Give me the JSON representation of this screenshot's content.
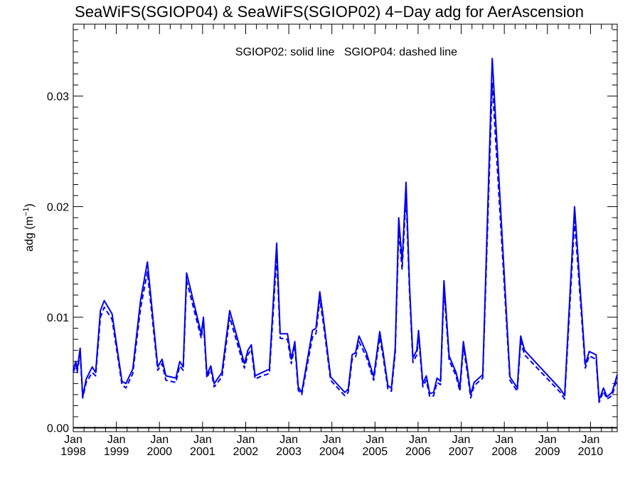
{
  "chart_data": {
    "type": "line",
    "title": "SeaWiFS(SGIOP04) & SeaWiFS(SGIOP02) 4−Day adg for AerAscension",
    "annotation": "SGIOP02: solid line   SGIOP04: dashed line",
    "ylabel": "adg (m",
    "ylabel_sup": "−1",
    "ylabel_close": ")",
    "xlim": [
      1998.0,
      2010.62
    ],
    "ylim": [
      -0.00035,
      0.0365
    ],
    "yticks": [
      {
        "value": 0.0,
        "label": "0.00"
      },
      {
        "value": 0.01,
        "label": "0.01"
      },
      {
        "value": 0.02,
        "label": "0.02"
      },
      {
        "value": 0.03,
        "label": "0.03"
      }
    ],
    "xticks": [
      {
        "value": 1998,
        "month": "Jan",
        "year": "1998"
      },
      {
        "value": 1999,
        "month": "Jan",
        "year": "1999"
      },
      {
        "value": 2000,
        "month": "Jan",
        "year": "2000"
      },
      {
        "value": 2001,
        "month": "Jan",
        "year": "2001"
      },
      {
        "value": 2002,
        "month": "Jan",
        "year": "2002"
      },
      {
        "value": 2003,
        "month": "Jan",
        "year": "2003"
      },
      {
        "value": 2004,
        "month": "Jan",
        "year": "2004"
      },
      {
        "value": 2005,
        "month": "Jan",
        "year": "2005"
      },
      {
        "value": 2006,
        "month": "Jan",
        "year": "2006"
      },
      {
        "value": 2007,
        "month": "Jan",
        "year": "2007"
      },
      {
        "value": 2008,
        "month": "Jan",
        "year": "2008"
      },
      {
        "value": 2009,
        "month": "Jan",
        "year": "2009"
      },
      {
        "value": 2010,
        "month": "Jan",
        "year": "2010"
      }
    ],
    "colors": {
      "series": "#0000ee",
      "axes": "#000000",
      "zero_line": "#000000"
    },
    "series": [
      {
        "style": "solid",
        "points": [
          [
            1998.0,
            0.0052
          ],
          [
            1998.06,
            0.006
          ],
          [
            1998.09,
            0.0052
          ],
          [
            1998.16,
            0.0072
          ],
          [
            1998.22,
            0.0028
          ],
          [
            1998.3,
            0.0044
          ],
          [
            1998.44,
            0.0055
          ],
          [
            1998.52,
            0.005
          ],
          [
            1998.63,
            0.0106
          ],
          [
            1998.72,
            0.0115
          ],
          [
            1998.9,
            0.0103
          ],
          [
            1999.13,
            0.0042
          ],
          [
            1999.22,
            0.004
          ],
          [
            1999.38,
            0.0053
          ],
          [
            1999.56,
            0.0115
          ],
          [
            1999.72,
            0.015
          ],
          [
            1999.96,
            0.0055
          ],
          [
            2000.06,
            0.0062
          ],
          [
            2000.15,
            0.0047
          ],
          [
            2000.38,
            0.0045
          ],
          [
            2000.47,
            0.006
          ],
          [
            2000.55,
            0.0055
          ],
          [
            2000.63,
            0.014
          ],
          [
            2000.97,
            0.0085
          ],
          [
            2001.02,
            0.01
          ],
          [
            2001.1,
            0.0048
          ],
          [
            2001.19,
            0.0056
          ],
          [
            2001.27,
            0.004
          ],
          [
            2001.45,
            0.005
          ],
          [
            2001.63,
            0.0106
          ],
          [
            2001.97,
            0.0058
          ],
          [
            2002.05,
            0.007
          ],
          [
            2002.13,
            0.0075
          ],
          [
            2002.22,
            0.0047
          ],
          [
            2002.38,
            0.005
          ],
          [
            2002.55,
            0.0053
          ],
          [
            2002.72,
            0.0167
          ],
          [
            2002.8,
            0.0085
          ],
          [
            2002.97,
            0.0085
          ],
          [
            2003.06,
            0.0062
          ],
          [
            2003.14,
            0.0078
          ],
          [
            2003.22,
            0.0037
          ],
          [
            2003.3,
            0.0032
          ],
          [
            2003.55,
            0.0088
          ],
          [
            2003.63,
            0.009
          ],
          [
            2003.72,
            0.0123
          ],
          [
            2003.8,
            0.01
          ],
          [
            2003.97,
            0.0046
          ],
          [
            2004.3,
            0.0032
          ],
          [
            2004.38,
            0.0035
          ],
          [
            2004.47,
            0.0066
          ],
          [
            2004.55,
            0.0068
          ],
          [
            2004.63,
            0.0083
          ],
          [
            2004.8,
            0.0068
          ],
          [
            2004.97,
            0.0046
          ],
          [
            2005.11,
            0.0087
          ],
          [
            2005.19,
            0.0068
          ],
          [
            2005.3,
            0.0038
          ],
          [
            2005.38,
            0.0036
          ],
          [
            2005.47,
            0.0072
          ],
          [
            2005.55,
            0.019
          ],
          [
            2005.63,
            0.015
          ],
          [
            2005.72,
            0.0222
          ],
          [
            2005.8,
            0.013
          ],
          [
            2005.88,
            0.0063
          ],
          [
            2005.97,
            0.007
          ],
          [
            2006.01,
            0.0088
          ],
          [
            2006.11,
            0.004
          ],
          [
            2006.19,
            0.0047
          ],
          [
            2006.27,
            0.0031
          ],
          [
            2006.36,
            0.0032
          ],
          [
            2006.44,
            0.0045
          ],
          [
            2006.52,
            0.0042
          ],
          [
            2006.6,
            0.0133
          ],
          [
            2006.72,
            0.0065
          ],
          [
            2006.88,
            0.005
          ],
          [
            2006.97,
            0.0036
          ],
          [
            2007.05,
            0.0078
          ],
          [
            2007.14,
            0.0055
          ],
          [
            2007.22,
            0.003
          ],
          [
            2007.3,
            0.0041
          ],
          [
            2007.5,
            0.0048
          ],
          [
            2007.72,
            0.0334
          ],
          [
            2008.13,
            0.0046
          ],
          [
            2008.3,
            0.0036
          ],
          [
            2008.38,
            0.0083
          ],
          [
            2008.47,
            0.007
          ],
          [
            2009.3,
            0.0035
          ],
          [
            2009.4,
            0.0029
          ],
          [
            2009.63,
            0.02
          ],
          [
            2009.88,
            0.0057
          ],
          [
            2009.97,
            0.0069
          ],
          [
            2010.13,
            0.0066
          ],
          [
            2010.2,
            0.0025
          ],
          [
            2010.3,
            0.0036
          ],
          [
            2010.38,
            0.0028
          ],
          [
            2010.5,
            0.0032
          ],
          [
            2010.62,
            0.0048
          ]
        ]
      },
      {
        "style": "dashed",
        "points": [
          [
            1998.0,
            0.005
          ],
          [
            1998.06,
            0.0057
          ],
          [
            1998.09,
            0.005
          ],
          [
            1998.16,
            0.0068
          ],
          [
            1998.22,
            0.0027
          ],
          [
            1998.3,
            0.0041
          ],
          [
            1998.44,
            0.005
          ],
          [
            1998.52,
            0.0047
          ],
          [
            1998.63,
            0.01
          ],
          [
            1998.72,
            0.0109
          ],
          [
            1998.9,
            0.0098
          ],
          [
            1999.13,
            0.0039
          ],
          [
            1999.22,
            0.0036
          ],
          [
            1999.38,
            0.0049
          ],
          [
            1999.56,
            0.0108
          ],
          [
            1999.72,
            0.0141
          ],
          [
            1999.96,
            0.0052
          ],
          [
            2000.06,
            0.0058
          ],
          [
            2000.15,
            0.0043
          ],
          [
            2000.38,
            0.0041
          ],
          [
            2000.47,
            0.0056
          ],
          [
            2000.55,
            0.0052
          ],
          [
            2000.63,
            0.0133
          ],
          [
            2000.97,
            0.0081
          ],
          [
            2001.02,
            0.0095
          ],
          [
            2001.1,
            0.0045
          ],
          [
            2001.19,
            0.0053
          ],
          [
            2001.27,
            0.0037
          ],
          [
            2001.45,
            0.0046
          ],
          [
            2001.63,
            0.01
          ],
          [
            2001.97,
            0.0054
          ],
          [
            2002.05,
            0.0066
          ],
          [
            2002.13,
            0.0071
          ],
          [
            2002.22,
            0.0044
          ],
          [
            2002.38,
            0.0047
          ],
          [
            2002.55,
            0.0049
          ],
          [
            2002.72,
            0.0155
          ],
          [
            2002.8,
            0.0081
          ],
          [
            2002.97,
            0.008
          ],
          [
            2003.06,
            0.0058
          ],
          [
            2003.14,
            0.0074
          ],
          [
            2003.22,
            0.0034
          ],
          [
            2003.3,
            0.003
          ],
          [
            2003.55,
            0.0082
          ],
          [
            2003.63,
            0.0085
          ],
          [
            2003.72,
            0.0116
          ],
          [
            2003.8,
            0.0095
          ],
          [
            2003.97,
            0.0043
          ],
          [
            2004.3,
            0.0029
          ],
          [
            2004.38,
            0.0032
          ],
          [
            2004.47,
            0.0062
          ],
          [
            2004.55,
            0.0064
          ],
          [
            2004.63,
            0.0078
          ],
          [
            2004.8,
            0.0064
          ],
          [
            2004.97,
            0.0043
          ],
          [
            2005.11,
            0.0082
          ],
          [
            2005.19,
            0.0064
          ],
          [
            2005.3,
            0.0035
          ],
          [
            2005.38,
            0.0033
          ],
          [
            2005.47,
            0.0068
          ],
          [
            2005.55,
            0.0178
          ],
          [
            2005.63,
            0.0143
          ],
          [
            2005.72,
            0.021
          ],
          [
            2005.8,
            0.0124
          ],
          [
            2005.88,
            0.0059
          ],
          [
            2005.97,
            0.0066
          ],
          [
            2006.01,
            0.0083
          ],
          [
            2006.11,
            0.0037
          ],
          [
            2006.19,
            0.0043
          ],
          [
            2006.27,
            0.0028
          ],
          [
            2006.36,
            0.0029
          ],
          [
            2006.44,
            0.0041
          ],
          [
            2006.52,
            0.0039
          ],
          [
            2006.6,
            0.0125
          ],
          [
            2006.72,
            0.0061
          ],
          [
            2006.88,
            0.0047
          ],
          [
            2006.97,
            0.0033
          ],
          [
            2007.05,
            0.0073
          ],
          [
            2007.14,
            0.0051
          ],
          [
            2007.22,
            0.0027
          ],
          [
            2007.3,
            0.0038
          ],
          [
            2007.5,
            0.0045
          ],
          [
            2007.72,
            0.0312
          ],
          [
            2008.13,
            0.0043
          ],
          [
            2008.3,
            0.0033
          ],
          [
            2008.38,
            0.0078
          ],
          [
            2008.47,
            0.0066
          ],
          [
            2009.3,
            0.0032
          ],
          [
            2009.4,
            0.0026
          ],
          [
            2009.63,
            0.0187
          ],
          [
            2009.88,
            0.0054
          ],
          [
            2009.97,
            0.0065
          ],
          [
            2010.13,
            0.0062
          ],
          [
            2010.2,
            0.0023
          ],
          [
            2010.3,
            0.0033
          ],
          [
            2010.38,
            0.0026
          ],
          [
            2010.5,
            0.0029
          ],
          [
            2010.62,
            0.0045
          ]
        ]
      }
    ]
  }
}
